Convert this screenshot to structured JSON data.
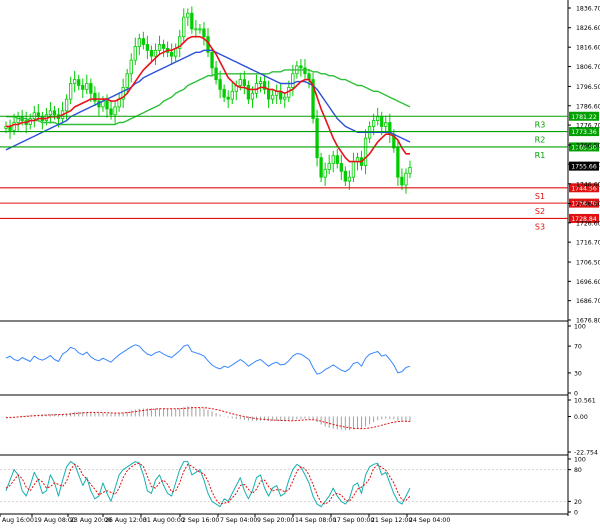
{
  "chart_data": {
    "type": "line",
    "symbol_chart": "candlestick",
    "colors": {
      "candle": "#00cc00",
      "ma_fast": "#e8121b",
      "ma_medium": "#2b4fd8",
      "ma_slow": "#2fbf3a",
      "resistance": "#00a000",
      "support": "#e01010",
      "rsi": "#3a86ff",
      "macd_hist": "#a0a0a0",
      "macd_signal": "#e01010",
      "stoch_main": "#18b0b0",
      "stoch_signal": "#e01010",
      "current_price_box": "#000000"
    },
    "price_axis": {
      "min": 1668,
      "max": 1840,
      "ticks": [
        "1836.70",
        "1826.60",
        "1816.60",
        "1806.70",
        "1796.50",
        "1786.60",
        "1776.70",
        "1766.50",
        "1756.70",
        "1746.60",
        "1736.50",
        "1726.60",
        "1716.70",
        "1706.50",
        "1696.60",
        "1686.70",
        "1676.80"
      ]
    },
    "x_labels": [
      "Aug 16:00",
      "19 Aug 08:00",
      "23 Aug 20:00",
      "26 Aug 12:00",
      "31 Aug 00:00",
      "2 Sep 16:00",
      "7 Sep 04:00",
      "9 Sep 20:00",
      "14 Sep 08:00",
      "17 Sep 00:00",
      "21 Sep 12:00",
      "24 Sep 04:00"
    ],
    "levels": [
      {
        "name": "R3",
        "value": 1781.22,
        "label": "1781.22",
        "kind": "resistance"
      },
      {
        "name": "R2",
        "value": 1773.36,
        "label": "1773.36",
        "kind": "resistance"
      },
      {
        "name": "R1",
        "value": 1765.5,
        "label": "1765.50",
        "kind": "resistance"
      },
      {
        "name": "S1",
        "value": 1744.56,
        "label": "1744.56",
        "kind": "support"
      },
      {
        "name": "S2",
        "value": 1736.7,
        "label": "1736.70",
        "kind": "support"
      },
      {
        "name": "S3",
        "value": 1728.84,
        "label": "1728.84",
        "kind": "support"
      }
    ],
    "current_price": {
      "value": 1755.66,
      "label": "1755.66"
    },
    "series": [
      {
        "key": "close",
        "values": [
          1776,
          1774,
          1778,
          1781,
          1779,
          1777,
          1780,
          1783,
          1781,
          1779,
          1782,
          1784,
          1782,
          1780,
          1784,
          1790,
          1798,
          1800,
          1797,
          1795,
          1798,
          1793,
          1789,
          1786,
          1789,
          1785,
          1782,
          1786,
          1790,
          1796,
          1803,
          1810,
          1817,
          1821,
          1818,
          1815,
          1812,
          1815,
          1818,
          1816,
          1814,
          1812,
          1816,
          1822,
          1832,
          1834,
          1826,
          1826,
          1826,
          1822,
          1814,
          1806,
          1800,
          1795,
          1791,
          1790,
          1794,
          1797,
          1800,
          1797,
          1790,
          1793,
          1798,
          1799,
          1795,
          1790,
          1792,
          1794,
          1790,
          1791,
          1796,
          1803,
          1807,
          1806,
          1803,
          1800,
          1780,
          1760,
          1750,
          1754,
          1757,
          1761,
          1757,
          1753,
          1748,
          1750,
          1758,
          1760,
          1756,
          1770,
          1776,
          1779,
          1781,
          1776,
          1778,
          1772,
          1765,
          1750,
          1746,
          1752,
          1755
        ]
      },
      {
        "key": "ma_fast",
        "values": [
          1776,
          1776,
          1777,
          1777,
          1778,
          1778,
          1779,
          1779,
          1780,
          1780,
          1780,
          1781,
          1781,
          1781,
          1782,
          1783,
          1784,
          1786,
          1787,
          1788,
          1789,
          1790,
          1790,
          1790,
          1790,
          1790,
          1789,
          1789,
          1790,
          1791,
          1793,
          1796,
          1799,
          1802,
          1805,
          1807,
          1809,
          1811,
          1813,
          1814,
          1815,
          1815,
          1816,
          1817,
          1819,
          1821,
          1822,
          1822,
          1822,
          1821,
          1819,
          1816,
          1813,
          1809,
          1805,
          1801,
          1799,
          1797,
          1796,
          1796,
          1795,
          1795,
          1795,
          1796,
          1796,
          1795,
          1795,
          1794,
          1794,
          1793,
          1794,
          1795,
          1797,
          1799,
          1800,
          1800,
          1797,
          1791,
          1785,
          1780,
          1775,
          1770,
          1766,
          1763,
          1760,
          1758,
          1758,
          1758,
          1758,
          1760,
          1762,
          1765,
          1768,
          1770,
          1772,
          1772,
          1771,
          1769,
          1765,
          1762,
          1762
        ]
      },
      {
        "key": "ma_medium",
        "values": [
          1764,
          1765,
          1766,
          1767,
          1768,
          1769,
          1770,
          1771,
          1772,
          1773,
          1774,
          1775,
          1776,
          1777,
          1778,
          1779,
          1781,
          1782,
          1783,
          1784,
          1785,
          1786,
          1787,
          1788,
          1789,
          1790,
          1791,
          1792,
          1793,
          1794,
          1795,
          1796,
          1798,
          1799,
          1801,
          1802,
          1803,
          1804,
          1805,
          1806,
          1807,
          1808,
          1809,
          1810,
          1811,
          1812,
          1813,
          1814,
          1814,
          1815,
          1815,
          1815,
          1814,
          1813,
          1812,
          1811,
          1810,
          1809,
          1808,
          1807,
          1806,
          1805,
          1804,
          1803,
          1802,
          1801,
          1800,
          1799,
          1798,
          1798,
          1798,
          1798,
          1799,
          1799,
          1799,
          1798,
          1797,
          1795,
          1792,
          1789,
          1786,
          1783,
          1780,
          1778,
          1776,
          1775,
          1774,
          1773,
          1773,
          1773,
          1773,
          1773,
          1773,
          1773,
          1773,
          1773,
          1772,
          1771,
          1770,
          1769,
          1768
        ]
      },
      {
        "key": "ma_slow",
        "values": [
          1781,
          1781,
          1781,
          1780,
          1780,
          1780,
          1779,
          1779,
          1779,
          1778,
          1778,
          1778,
          1778,
          1777,
          1777,
          1777,
          1777,
          1777,
          1777,
          1777,
          1777,
          1777,
          1777,
          1777,
          1777,
          1777,
          1777,
          1777,
          1778,
          1778,
          1779,
          1780,
          1781,
          1782,
          1783,
          1784,
          1785,
          1786,
          1787,
          1789,
          1790,
          1791,
          1793,
          1794,
          1795,
          1797,
          1798,
          1799,
          1800,
          1801,
          1802,
          1802,
          1803,
          1803,
          1803,
          1803,
          1803,
          1803,
          1803,
          1803,
          1803,
          1803,
          1803,
          1803,
          1803,
          1803,
          1804,
          1804,
          1804,
          1805,
          1805,
          1805,
          1805,
          1805,
          1805,
          1805,
          1804,
          1804,
          1803,
          1803,
          1802,
          1802,
          1801,
          1800,
          1800,
          1799,
          1798,
          1797,
          1797,
          1796,
          1795,
          1794,
          1794,
          1793,
          1792,
          1791,
          1790,
          1789,
          1788,
          1787,
          1786
        ]
      },
      {
        "key": "rsi",
        "values": [
          52,
          55,
          50,
          48,
          53,
          50,
          47,
          55,
          51,
          49,
          52,
          56,
          50,
          47,
          58,
          62,
          68,
          66,
          60,
          57,
          61,
          54,
          50,
          48,
          52,
          49,
          46,
          52,
          57,
          61,
          65,
          69,
          72,
          70,
          63,
          58,
          56,
          60,
          62,
          58,
          55,
          53,
          58,
          63,
          70,
          72,
          62,
          60,
          58,
          55,
          48,
          42,
          38,
          36,
          40,
          38,
          42,
          46,
          50,
          46,
          40,
          44,
          48,
          50,
          45,
          40,
          44,
          46,
          42,
          43,
          48,
          55,
          59,
          58,
          54,
          50,
          38,
          28,
          30,
          35,
          38,
          42,
          38,
          34,
          32,
          36,
          44,
          46,
          40,
          52,
          58,
          60,
          62,
          55,
          57,
          50,
          42,
          30,
          32,
          38,
          40
        ]
      },
      {
        "key": "macd_hist",
        "values": [
          -0.5,
          -0.3,
          0,
          0.3,
          0.5,
          0.6,
          0.8,
          1,
          1.1,
          1.2,
          1.3,
          1.4,
          1.5,
          1.4,
          1.6,
          1.9,
          2.4,
          2.8,
          3,
          3,
          3,
          2.9,
          2.6,
          2.4,
          2.2,
          2,
          1.8,
          1.9,
          2.1,
          2.6,
          3.1,
          3.8,
          4.4,
          4.9,
          5.1,
          5.2,
          5.2,
          5.2,
          5.3,
          5.2,
          5.0,
          4.8,
          4.9,
          5.2,
          5.9,
          6.5,
          6.2,
          5.9,
          5.5,
          5.0,
          4.2,
          3.3,
          2.2,
          1.2,
          0.2,
          -0.6,
          -1.2,
          -1.6,
          -1.9,
          -2.2,
          -2.6,
          -2.8,
          -2.8,
          -2.6,
          -2.6,
          -2.8,
          -2.8,
          -2.8,
          -3,
          -3,
          -2.8,
          -2.4,
          -1.9,
          -1.6,
          -1.4,
          -1.4,
          -2.2,
          -3.6,
          -5.2,
          -6.4,
          -7.2,
          -7.8,
          -8.2,
          -8.5,
          -8.8,
          -8.8,
          -8.4,
          -7.9,
          -7.6,
          -6.4,
          -5.0,
          -3.6,
          -2.4,
          -1.8,
          -1.4,
          -1.4,
          -1.8,
          -2.6,
          -3.2,
          -3.4,
          -3.4
        ]
      },
      {
        "key": "macd_signal",
        "values": [
          -0.8,
          -0.7,
          -0.5,
          -0.3,
          -0.1,
          0.1,
          0.3,
          0.5,
          0.7,
          0.8,
          0.9,
          1.0,
          1.1,
          1.2,
          1.3,
          1.4,
          1.6,
          1.9,
          2.1,
          2.3,
          2.5,
          2.6,
          2.6,
          2.6,
          2.5,
          2.4,
          2.3,
          2.2,
          2.2,
          2.3,
          2.5,
          2.8,
          3.1,
          3.5,
          3.9,
          4.2,
          4.5,
          4.7,
          4.9,
          5.0,
          5.0,
          5.0,
          5.0,
          5.0,
          5.2,
          5.4,
          5.6,
          5.7,
          5.7,
          5.6,
          5.4,
          5.0,
          4.5,
          3.9,
          3.2,
          2.5,
          1.8,
          1.1,
          0.5,
          -0.1,
          -0.6,
          -1.0,
          -1.4,
          -1.7,
          -1.9,
          -2.1,
          -2.3,
          -2.4,
          -2.5,
          -2.6,
          -2.7,
          -2.7,
          -2.6,
          -2.4,
          -2.2,
          -2.0,
          -2.1,
          -2.4,
          -3.0,
          -3.7,
          -4.4,
          -5.1,
          -5.7,
          -6.3,
          -6.8,
          -7.2,
          -7.5,
          -7.7,
          -7.8,
          -7.7,
          -7.4,
          -6.9,
          -6.3,
          -5.6,
          -4.9,
          -4.2,
          -3.6,
          -3.2,
          -3.1,
          -3.1,
          -3.2
        ]
      },
      {
        "key": "stoch_main",
        "values": [
          40,
          60,
          80,
          70,
          40,
          30,
          50,
          75,
          60,
          35,
          40,
          70,
          55,
          30,
          60,
          85,
          95,
          90,
          70,
          50,
          65,
          40,
          25,
          30,
          55,
          35,
          20,
          45,
          70,
          80,
          85,
          90,
          95,
          92,
          70,
          40,
          35,
          60,
          70,
          50,
          35,
          30,
          55,
          80,
          95,
          95,
          70,
          75,
          80,
          60,
          35,
          20,
          15,
          10,
          25,
          20,
          35,
          50,
          65,
          40,
          25,
          40,
          65,
          70,
          45,
          30,
          45,
          50,
          30,
          35,
          60,
          80,
          90,
          85,
          70,
          55,
          30,
          15,
          10,
          20,
          30,
          45,
          30,
          20,
          15,
          25,
          50,
          55,
          35,
          70,
          85,
          90,
          92,
          70,
          75,
          55,
          35,
          20,
          15,
          30,
          45
        ]
      },
      {
        "key": "stoch_signal",
        "values": [
          45,
          50,
          60,
          70,
          63,
          47,
          40,
          52,
          62,
          57,
          45,
          48,
          55,
          52,
          48,
          58,
          80,
          90,
          85,
          70,
          62,
          52,
          43,
          32,
          37,
          40,
          37,
          33,
          45,
          65,
          78,
          85,
          90,
          92,
          86,
          67,
          48,
          45,
          55,
          60,
          52,
          38,
          40,
          55,
          77,
          90,
          87,
          80,
          75,
          72,
          58,
          38,
          23,
          15,
          17,
          18,
          27,
          35,
          50,
          52,
          43,
          35,
          43,
          58,
          60,
          48,
          40,
          42,
          42,
          38,
          42,
          58,
          77,
          85,
          82,
          70,
          52,
          33,
          18,
          15,
          20,
          32,
          35,
          32,
          22,
          20,
          30,
          43,
          47,
          53,
          63,
          82,
          89,
          84,
          79,
          67,
          55,
          37,
          23,
          22,
          30
        ]
      }
    ],
    "rsi_axis": {
      "min": 0,
      "max": 100,
      "ticks": [
        "100",
        "70",
        "30",
        "0"
      ]
    },
    "macd_axis": {
      "min": -22.754,
      "max": 10.561,
      "ticks": [
        "10.561",
        "0.00",
        "-22.754"
      ]
    },
    "stoch_axis": {
      "min": 0,
      "max": 100,
      "ticks": [
        "100",
        "80",
        "20",
        "0"
      ]
    }
  }
}
